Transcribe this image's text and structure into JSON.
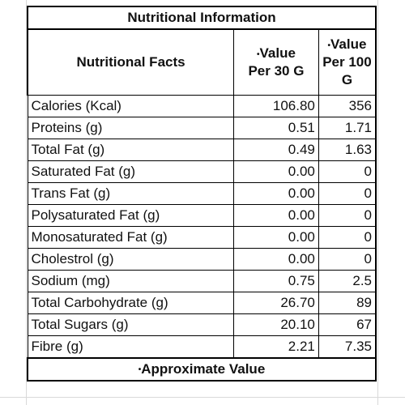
{
  "table": {
    "title": "Nutritional Information",
    "headers": {
      "facts": "Nutritional Facts",
      "per30_mark": "•",
      "per30_line1": "Value",
      "per30_line2": "Per 30 G",
      "per100_mark": "•",
      "per100_line1": "Value",
      "per100_line2": "Per 100",
      "per100_line3": "G"
    },
    "rows": [
      {
        "label": "Calories (Kcal)",
        "per30": "106.80",
        "per100": "356"
      },
      {
        "label": "Proteins (g)",
        "per30": "0.51",
        "per100": "1.71"
      },
      {
        "label": "Total Fat (g)",
        "per30": "0.49",
        "per100": "1.63"
      },
      {
        "label": "Saturated Fat (g)",
        "per30": "0.00",
        "per100": "0"
      },
      {
        "label": "Trans Fat (g)",
        "per30": "0.00",
        "per100": "0"
      },
      {
        "label": "Polysaturated Fat (g)",
        "per30": "0.00",
        "per100": "0"
      },
      {
        "label": "Monosaturated Fat (g)",
        "per30": "0.00",
        "per100": "0"
      },
      {
        "label": "Cholestrol (g)",
        "per30": "0.00",
        "per100": "0"
      },
      {
        "label": "Sodium  (mg)",
        "per30": "0.75",
        "per100": "2.5"
      },
      {
        "label": "Total Carbohydrate (g)",
        "per30": "26.70",
        "per100": "89"
      },
      {
        "label": "Total Sugars (g)",
        "per30": "20.10",
        "per100": "67"
      },
      {
        "label": "Fibre (g)",
        "per30": "2.21",
        "per100": "7.35"
      }
    ],
    "footer_mark": "•",
    "footer": "Approximate Value"
  }
}
